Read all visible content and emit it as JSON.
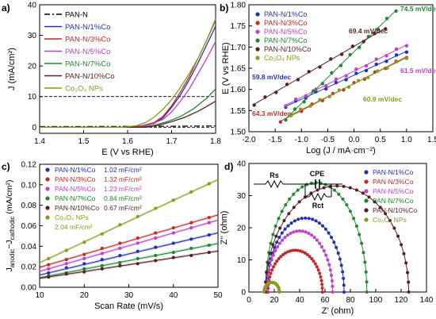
{
  "chart_data": [
    {
      "panel": "a)",
      "type": "line",
      "xlabel": "E (V vs RHE)",
      "ylabel": "J (mA/cm²)",
      "xlim": [
        1.4,
        1.8
      ],
      "ylim": [
        -2,
        40
      ],
      "xticks": [
        "1.4",
        "1.5",
        "1.6",
        "1.7",
        "1.8"
      ],
      "yticks": [
        "0",
        "10",
        "20",
        "30",
        "40"
      ],
      "reference_lines": [
        10,
        0
      ],
      "legend_position": "top-left",
      "series": [
        {
          "name": "PAN-N",
          "color": "#000000",
          "dash": "7,3,2,3",
          "x": [
            1.4,
            1.5,
            1.6,
            1.7,
            1.8
          ],
          "y": [
            0.2,
            0.2,
            0.25,
            0.3,
            0.4
          ]
        },
        {
          "name": "PAN-N/1%Co",
          "color": "#2230b8",
          "x": [
            1.4,
            1.6,
            1.63,
            1.66,
            1.68,
            1.7,
            1.72,
            1.74,
            1.76,
            1.78,
            1.8
          ],
          "y": [
            0.0,
            0.0,
            0.3,
            1.2,
            3.0,
            6.5,
            10.5,
            15.5,
            21.0,
            27.0,
            33.0
          ]
        },
        {
          "name": "PAN-N/3%Co",
          "color": "#c22a2a",
          "x": [
            1.4,
            1.6,
            1.63,
            1.66,
            1.68,
            1.7,
            1.72,
            1.74,
            1.76,
            1.78,
            1.8
          ],
          "y": [
            0.0,
            0.0,
            0.4,
            1.5,
            3.5,
            7.0,
            11.5,
            16.5,
            22.5,
            28.5,
            35.0
          ]
        },
        {
          "name": "PAN-N/5%Co",
          "color": "#c040c8",
          "x": [
            1.4,
            1.62,
            1.65,
            1.68,
            1.7,
            1.72,
            1.74,
            1.76,
            1.78,
            1.8
          ],
          "y": [
            0.0,
            0.0,
            0.8,
            2.5,
            5.0,
            8.5,
            12.5,
            17.5,
            22.5,
            28.0
          ]
        },
        {
          "name": "PAN-N/7%Co",
          "color": "#1c8a2e",
          "x": [
            1.4,
            1.63,
            1.66,
            1.69,
            1.72,
            1.75,
            1.78,
            1.8
          ],
          "y": [
            0.0,
            0.0,
            0.6,
            1.8,
            3.5,
            6.0,
            9.5,
            12.5
          ]
        },
        {
          "name": "PAN-N/10%Co",
          "color": "#5a1e1e",
          "x": [
            1.4,
            1.64,
            1.67,
            1.7,
            1.73,
            1.76,
            1.78,
            1.8
          ],
          "y": [
            0.0,
            0.0,
            0.6,
            1.8,
            3.2,
            5.2,
            6.8,
            8.5
          ]
        },
        {
          "name": "Co₃O₄ NPs",
          "color": "#8a9a1a",
          "x": [
            1.4,
            1.59,
            1.62,
            1.64,
            1.66,
            1.68,
            1.7,
            1.72,
            1.74,
            1.76,
            1.78,
            1.8
          ],
          "y": [
            0.0,
            0.0,
            0.5,
            1.5,
            3.2,
            5.8,
            9.0,
            13.0,
            17.5,
            22.5,
            28.5,
            35.5
          ]
        }
      ]
    },
    {
      "panel": "b)",
      "type": "scatter",
      "xlabel": "Log (J / mA·cm⁻²)",
      "ylabel": "E (V vs RHE)",
      "xlim": [
        -2.0,
        1.5
      ],
      "ylim": [
        1.5,
        1.8
      ],
      "xticks": [
        "-2.0",
        "-1.5",
        "-1.0",
        "-0.5",
        "0.0",
        "0.5",
        "1.0",
        "1.5"
      ],
      "yticks": [
        "1.50",
        "1.55",
        "1.60",
        "1.65",
        "1.70",
        "1.75",
        "1.80"
      ],
      "legend_position": "top-left",
      "series": [
        {
          "name": "PAN-N/1%Co",
          "color": "#2230b8",
          "slope_label": "59.8 mV/dec",
          "x0": -1.3,
          "x1": 1.0,
          "y0": 1.56,
          "y1": 1.69
        },
        {
          "name": "PAN-N/3%Co",
          "color": "#c22a2a",
          "slope_label": "64.3 mV/dec",
          "x0": -1.4,
          "x1": 1.0,
          "y0": 1.525,
          "y1": 1.677
        },
        {
          "name": "PAN-N/5%Co",
          "color": "#c040c8",
          "slope_label": "61.5 mV/dec",
          "x0": -1.3,
          "x1": 1.0,
          "y0": 1.563,
          "y1": 1.705
        },
        {
          "name": "PAN-N/7%Co",
          "color": "#1c8a2e",
          "slope_label": "74.5 mV/dec",
          "x0": -1.3,
          "x1": 0.8,
          "y0": 1.53,
          "y1": 1.787
        },
        {
          "name": "PAN-N/10%Co",
          "color": "#5a1e1e",
          "slope_label": "69.4 mV/dec",
          "x0": -1.9,
          "x1": 0.6,
          "y0": 1.565,
          "y1": 1.745
        },
        {
          "name": "Co₃O₄ NPs",
          "color": "#8a9a1a",
          "slope_label": "60.9 mV/dec",
          "x0": -1.2,
          "x1": 1.0,
          "y0": 1.54,
          "y1": 1.675
        }
      ]
    },
    {
      "panel": "c)",
      "type": "scatter",
      "xlabel": "Scan Rate (mV/s)",
      "ylabel": "Jₐₙₒₔᵢc−Jᶜₐₜₕₒₔᵢc (mA/cm²)",
      "ylabel_main": "J",
      "ylabel_sub": "anodic",
      "ylabel_mid": "−J",
      "ylabel_sub2": "cathodic",
      "ylabel_unit": "(mA/cm²)",
      "xlim": [
        10,
        50
      ],
      "ylim": [
        0.0,
        0.12
      ],
      "xticks": [
        "10",
        "20",
        "30",
        "40",
        "50"
      ],
      "yticks": [
        "0.00",
        "0.02",
        "0.04",
        "0.06",
        "0.08",
        "0.10",
        "0.12"
      ],
      "legend_position": "top-left",
      "series": [
        {
          "name": "PAN-N/1%Co",
          "color": "#2230b8",
          "capacitance": "1.02 mF/cm²",
          "x": [
            12,
            16,
            20,
            24,
            28,
            32,
            36,
            40,
            44,
            48
          ],
          "y": [
            0.014,
            0.019,
            0.023,
            0.027,
            0.031,
            0.035,
            0.039,
            0.043,
            0.047,
            0.051
          ]
        },
        {
          "name": "PAN-N/3%Co",
          "color": "#c22a2a",
          "capacitance": "1.32 mF/cm²",
          "x": [
            12,
            16,
            20,
            24,
            28,
            32,
            36,
            40,
            44,
            48
          ],
          "y": [
            0.022,
            0.027,
            0.032,
            0.038,
            0.043,
            0.048,
            0.053,
            0.058,
            0.063,
            0.068
          ]
        },
        {
          "name": "PAN-N/5%Co",
          "color": "#c040c8",
          "capacitance": "1.23 mF/cm²",
          "x": [
            12,
            16,
            20,
            24,
            28,
            32,
            36,
            40,
            44,
            48
          ],
          "y": [
            0.018,
            0.023,
            0.028,
            0.033,
            0.038,
            0.043,
            0.048,
            0.053,
            0.058,
            0.063
          ]
        },
        {
          "name": "PAN-N/7%Co",
          "color": "#1c8a2e",
          "capacitance": "0.84 mF/cm²",
          "x": [
            12,
            16,
            20,
            24,
            28,
            32,
            36,
            40,
            44,
            48
          ],
          "y": [
            0.011,
            0.014,
            0.018,
            0.021,
            0.024,
            0.028,
            0.031,
            0.034,
            0.038,
            0.041
          ]
        },
        {
          "name": "PAN-N/10%Co",
          "color": "#5a1e1e",
          "capacitance": "0.67 mF/cm²",
          "x": [
            12,
            16,
            20,
            24,
            28,
            32,
            36,
            40,
            44,
            48
          ],
          "y": [
            0.01,
            0.013,
            0.015,
            0.018,
            0.021,
            0.023,
            0.026,
            0.029,
            0.031,
            0.034
          ]
        },
        {
          "name": "Co₃O₄ NPs",
          "color": "#8a9a1a",
          "capacitance": "2.04 mF/cm²",
          "x": [
            12,
            16,
            20,
            24,
            28,
            32,
            36,
            40,
            44,
            48
          ],
          "y": [
            0.028,
            0.036,
            0.044,
            0.052,
            0.061,
            0.069,
            0.077,
            0.085,
            0.093,
            0.101
          ]
        }
      ]
    },
    {
      "panel": "d)",
      "type": "scatter",
      "xlabel": "Z’ (ohm)",
      "ylabel": "Z’’ (ohm)",
      "xlim": [
        0,
        140
      ],
      "ylim": [
        0,
        40
      ],
      "xticks": [
        "0",
        "20",
        "40",
        "60",
        "80",
        "100",
        "120",
        "140"
      ],
      "yticks": [
        "0",
        "10",
        "20",
        "30",
        "40"
      ],
      "legend_position": "top-right",
      "circuit": {
        "labels": [
          "Rs",
          "CPE",
          "Rct"
        ]
      },
      "series": [
        {
          "name": "PAN-N/1%Co",
          "color": "#2230b8",
          "x_start": 14,
          "x_end": 75,
          "peak": 23
        },
        {
          "name": "PAN-N/3%Co",
          "color": "#c22a2a",
          "x_start": 15,
          "x_end": 58,
          "peak": 13
        },
        {
          "name": "PAN-N/5%Co",
          "color": "#c040c8",
          "x_start": 14,
          "x_end": 66,
          "peak": 19
        },
        {
          "name": "PAN-N/7%Co",
          "color": "#1c8a2e",
          "x_start": 13,
          "x_end": 93,
          "peak": 34
        },
        {
          "name": "PAN-N/10%Co",
          "color": "#5a1e1e",
          "x_start": 13,
          "x_end": 126,
          "peak": 33
        },
        {
          "name": "Co₃O₄ NPs",
          "color": "#8a9a1a",
          "x_start": 12,
          "x_end": 24,
          "peak": 3
        }
      ]
    }
  ]
}
